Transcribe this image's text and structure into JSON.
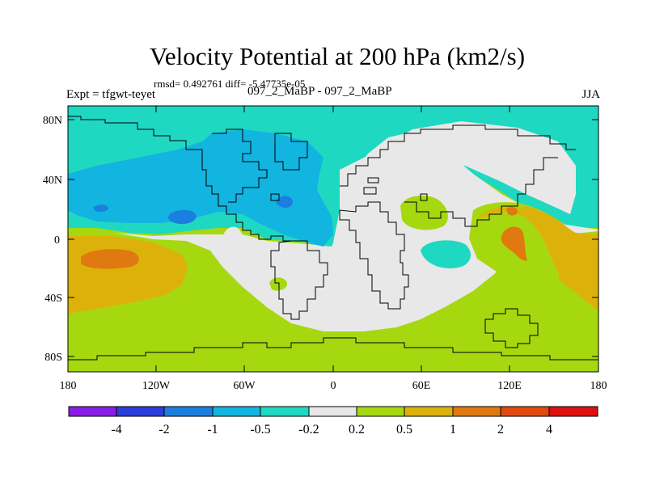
{
  "header": {
    "title": "Velocity Potential at 200 hPa (km2/s)",
    "stats": "rmsd= 0.492761 diff= -5.47735e-05",
    "experiment": "Expt = tfgwt-teyet",
    "runs": "097_2_MaBP - 097_2_MaBP",
    "season": "JJA"
  },
  "axes": {
    "y_ticks": [
      "80N",
      "40N",
      "0",
      "40S",
      "80S"
    ],
    "x_ticks": [
      "180",
      "120W",
      "60W",
      "0",
      "60E",
      "120E",
      "180"
    ]
  },
  "colorbar": {
    "labels": [
      "-4",
      "-2",
      "-1",
      "-0.5",
      "-0.2",
      "0.2",
      "0.5",
      "1",
      "2",
      "4"
    ],
    "colors": [
      "#8a1ee6",
      "#2d3ddb",
      "#1b7fe0",
      "#12b4e0",
      "#1fd8c2",
      "#e8e8e8",
      "#a6d810",
      "#dcb20a",
      "#e07a10",
      "#e04a0e",
      "#e01010"
    ]
  },
  "palette": {
    "blue": "#1b7fe0",
    "lightblue": "#12b4e0",
    "teal": "#1fd8c2",
    "white": "#e8e8e8",
    "green": "#a6d810",
    "yellow": "#dcb20a",
    "orange": "#e07a10"
  }
}
